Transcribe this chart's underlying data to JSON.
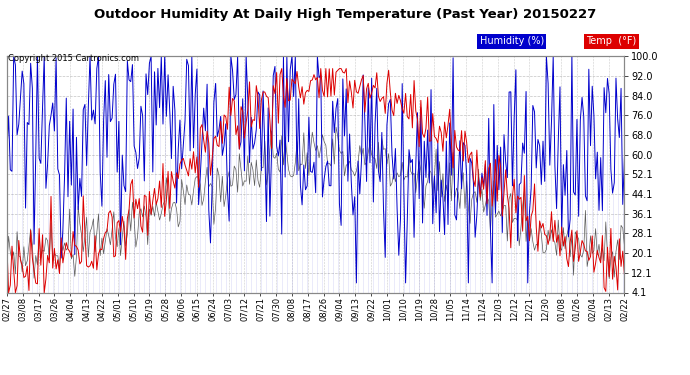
{
  "title": "Outdoor Humidity At Daily High Temperature (Past Year) 20150227",
  "copyright": "Copyright 2015 Cartronics.com",
  "bg_color": "#ffffff",
  "plot_bg_color": "#ffffff",
  "grid_color": "#aaaaaa",
  "humidity_color": "#0000cc",
  "temp_color": "#dd0000",
  "black_color": "#333333",
  "ylim": [
    4.1,
    100.0
  ],
  "yticks": [
    4.1,
    12.1,
    20.1,
    28.1,
    36.1,
    44.1,
    52.1,
    60.0,
    68.0,
    76.0,
    84.0,
    92.0,
    100.0
  ],
  "xtick_labels": [
    "02/27",
    "03/08",
    "03/17",
    "03/26",
    "04/04",
    "04/13",
    "04/22",
    "05/01",
    "05/10",
    "05/19",
    "05/28",
    "06/06",
    "06/15",
    "06/24",
    "07/03",
    "07/12",
    "07/21",
    "07/30",
    "08/08",
    "08/17",
    "08/26",
    "09/04",
    "09/13",
    "09/22",
    "10/01",
    "10/10",
    "10/19",
    "10/28",
    "11/05",
    "11/14",
    "11/24",
    "12/03",
    "12/12",
    "12/21",
    "12/30",
    "01/08",
    "01/26",
    "02/04",
    "02/13",
    "02/22"
  ],
  "legend_humidity_label": "Humidity (%)",
  "legend_temp_label": "Temp  (°F)",
  "legend_humidity_bg": "#0000cc",
  "legend_temp_bg": "#dd0000"
}
